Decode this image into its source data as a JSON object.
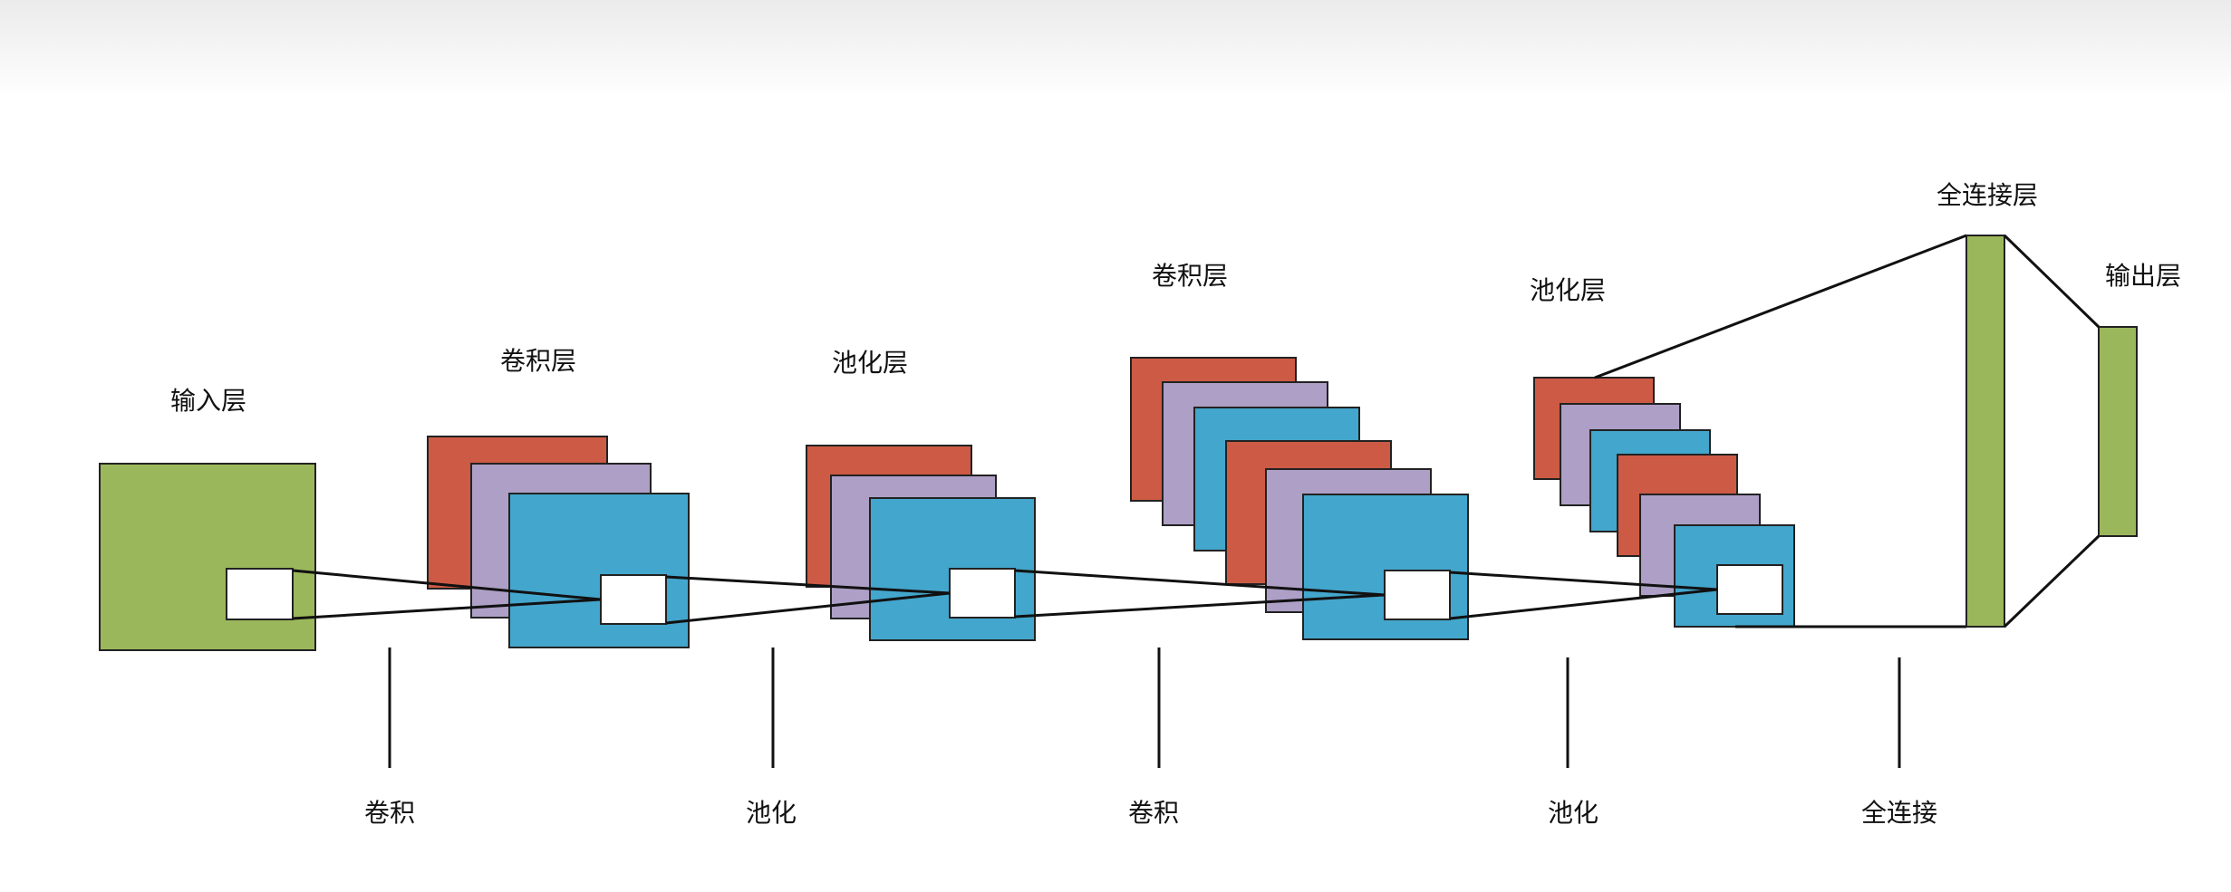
{
  "layers": {
    "input": "输入层",
    "conv1": "卷积层",
    "pool1": "池化层",
    "conv2": "卷积层",
    "pool2": "池化层",
    "fc": "全连接层",
    "output": "输出层"
  },
  "operations": {
    "conv1": "卷积",
    "pool1": "池化",
    "conv2": "卷积",
    "pool2": "池化",
    "fc": "全连接"
  },
  "colors": {
    "red": "#cd5a45",
    "purple": "#ad9fc5",
    "blue": "#43a6cc",
    "green": "#9bb75c",
    "stroke": "#222222"
  }
}
